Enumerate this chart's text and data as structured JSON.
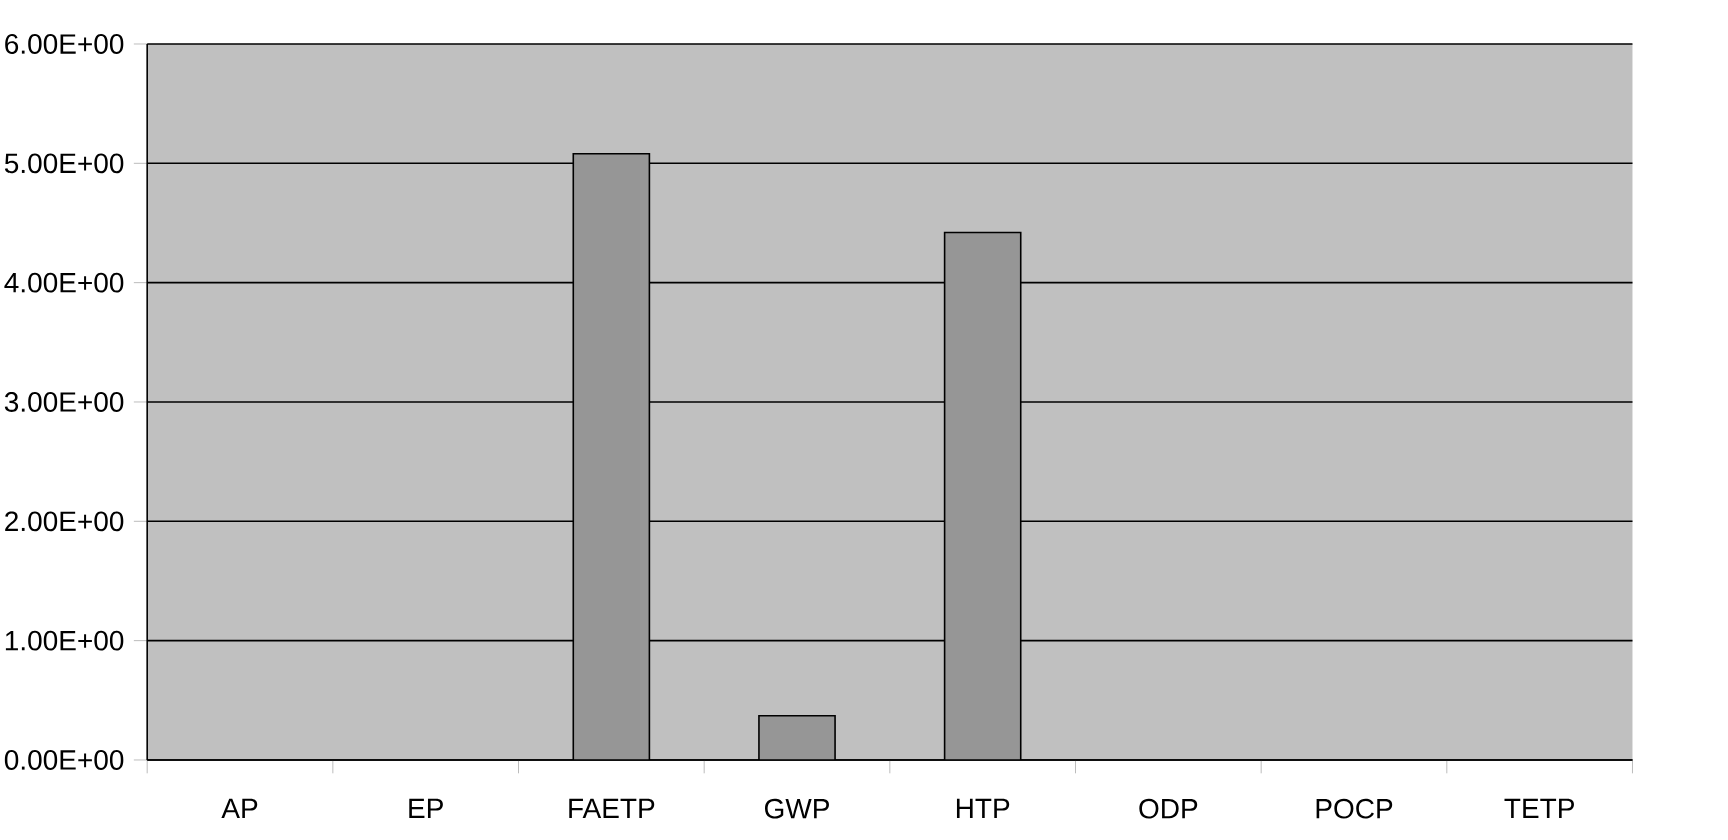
{
  "chart_data": {
    "type": "bar",
    "categories": [
      "AP",
      "EP",
      "FAETP",
      "GWP",
      "HTP",
      "ODP",
      "POCP",
      "TETP"
    ],
    "values": [
      0,
      0,
      5.08,
      0.37,
      4.42,
      0,
      0,
      0
    ],
    "color": "#969696",
    "ylim": [
      0,
      6
    ],
    "yticks": [
      {
        "value": 0,
        "label": "0.00E+00"
      },
      {
        "value": 1,
        "label": "1.00E+00"
      },
      {
        "value": 2,
        "label": "2.00E+00"
      },
      {
        "value": 3,
        "label": "3.00E+00"
      },
      {
        "value": 4,
        "label": "4.00E+00"
      },
      {
        "value": 5,
        "label": "5.00E+00"
      },
      {
        "value": 6,
        "label": "6.00E+00"
      }
    ],
    "grid": "y"
  }
}
